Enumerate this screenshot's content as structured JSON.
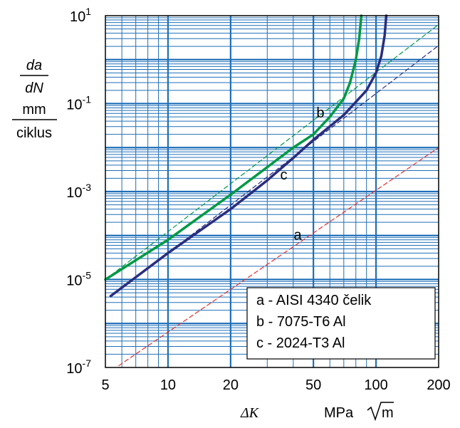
{
  "chart_data": {
    "type": "line",
    "x_scale": "log",
    "y_scale": "log",
    "xlim": [
      5,
      200
    ],
    "ylim": [
      1e-07,
      10
    ],
    "grid": true,
    "x_ticks": [
      {
        "v": 5,
        "label": "5"
      },
      {
        "v": 10,
        "label": "10"
      },
      {
        "v": 20,
        "label": "20"
      },
      {
        "v": 50,
        "label": "50"
      },
      {
        "v": 100,
        "label": "100"
      },
      {
        "v": 200,
        "label": "200"
      }
    ],
    "y_ticks": [
      {
        "v": 10,
        "base": "10",
        "exp": "1"
      },
      {
        "v": 0.1,
        "base": "10",
        "exp": "-1"
      },
      {
        "v": 0.001,
        "base": "10",
        "exp": "-3"
      },
      {
        "v": 1e-05,
        "base": "10",
        "exp": "-5"
      },
      {
        "v": 1e-07,
        "base": "10",
        "exp": "-7"
      }
    ],
    "ylabel": {
      "num": "da",
      "den": "dN",
      "unit_top": "mm",
      "unit_bottom": "ciklus"
    },
    "xlabel": {
      "symbol": "ΔK",
      "unit": "MPa",
      "unit_root": "m"
    },
    "legend": {
      "position": "bottom-right",
      "entries": [
        "a - AISI 4340 čelik",
        "b - 7075-T6 Al",
        "c - 2024-T3 Al"
      ]
    },
    "series": [
      {
        "id": "a",
        "label": "a",
        "color": "#e03030",
        "dash": true,
        "width": 1.2,
        "label_at": [
          42,
          8e-05
        ],
        "points": [
          [
            5.8,
            1.1e-07
          ],
          [
            200,
            0.01
          ]
        ]
      },
      {
        "id": "b",
        "label": "b",
        "color": "#009944",
        "dash": false,
        "width": 3.5,
        "label_at": [
          54,
          0.048
        ],
        "points": [
          [
            5,
            1e-05
          ],
          [
            10,
            8e-05
          ],
          [
            20,
            0.00085
          ],
          [
            40,
            0.01
          ],
          [
            50,
            0.02
          ],
          [
            60,
            0.05
          ],
          [
            70,
            0.13
          ],
          [
            75,
            0.3
          ],
          [
            80,
            1
          ],
          [
            83,
            3
          ],
          [
            85,
            10
          ]
        ]
      },
      {
        "id": "b-lin",
        "color": "#009944",
        "dash": true,
        "width": 1.2,
        "points": [
          [
            5,
            1e-05
          ],
          [
            200,
            6.3
          ]
        ]
      },
      {
        "id": "c",
        "label": "c",
        "color": "#2b2d7e",
        "dash": false,
        "width": 3.5,
        "label_at": [
          36,
          0.0019
        ],
        "points": [
          [
            5.3,
            4.2e-06
          ],
          [
            10,
            4e-05
          ],
          [
            20,
            0.0004
          ],
          [
            30,
            0.0018
          ],
          [
            40,
            0.0058
          ],
          [
            50,
            0.015
          ],
          [
            70,
            0.055
          ],
          [
            90,
            0.2
          ],
          [
            100,
            0.5
          ],
          [
            106,
            1.2
          ],
          [
            110,
            3.5
          ],
          [
            112,
            10
          ]
        ]
      },
      {
        "id": "c-lin",
        "color": "#2b2d7e",
        "dash": true,
        "width": 1.2,
        "points": [
          [
            10,
            4e-05
          ],
          [
            200,
            2.1
          ]
        ]
      }
    ]
  }
}
